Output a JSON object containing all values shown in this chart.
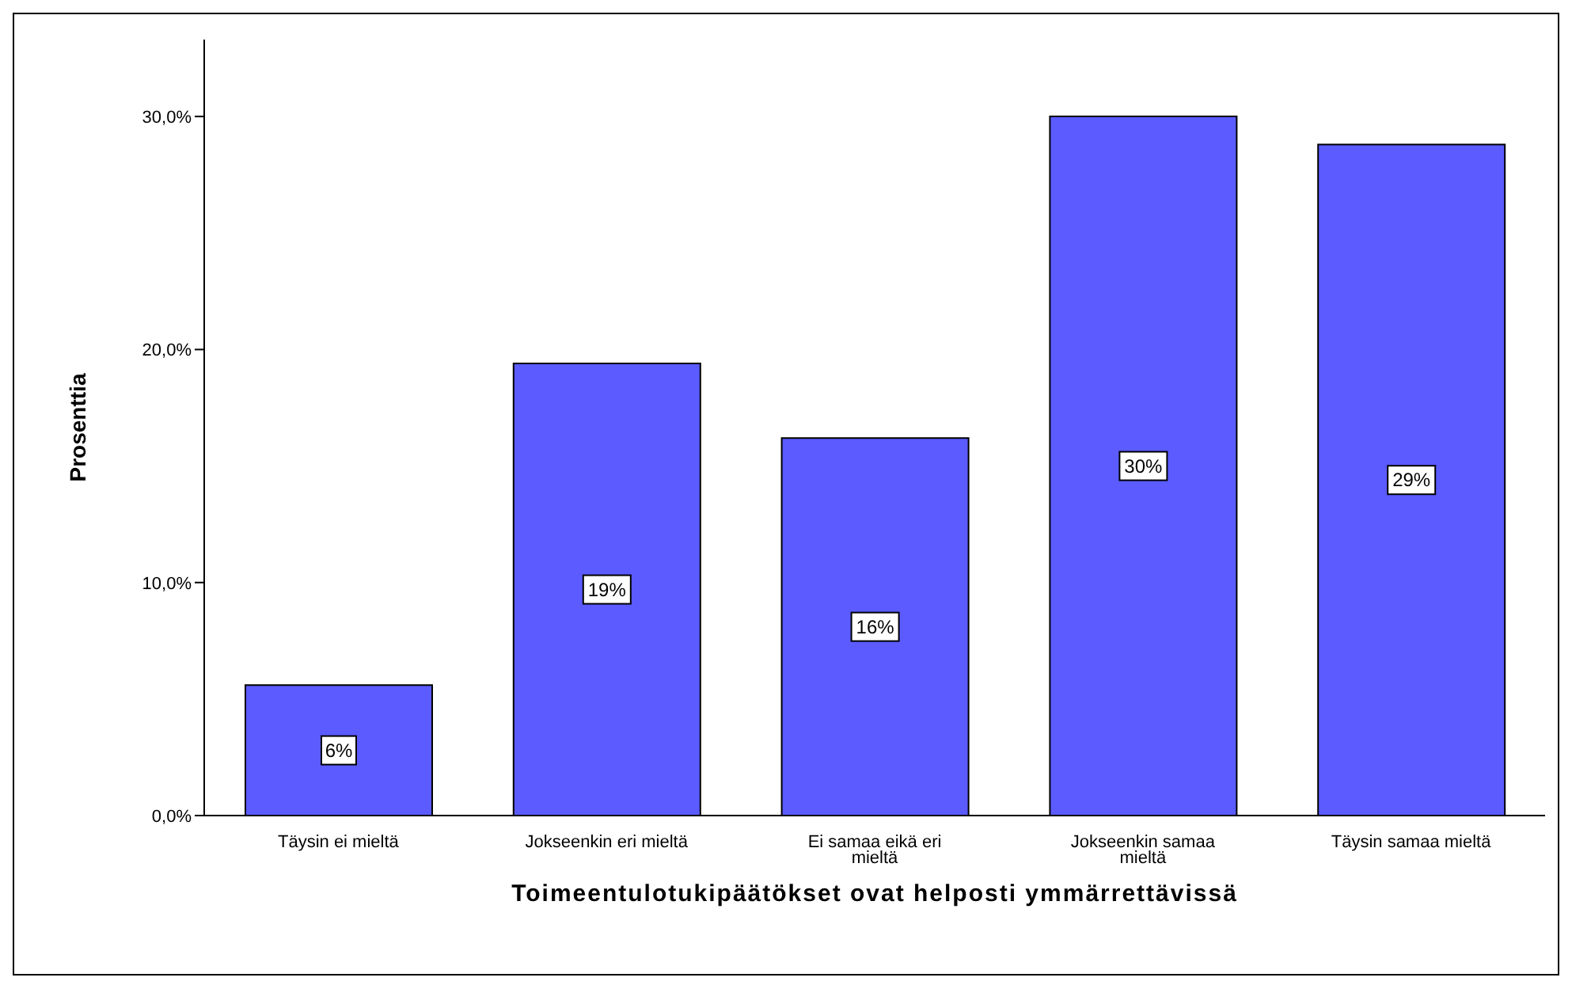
{
  "chart_data": {
    "type": "bar",
    "xlabel": "Toimeentulotukipäätökset ovat helposti ymmärrettävissä",
    "ylabel": "Prosenttia",
    "categories": [
      "Täysin ei mieltä",
      "Jokseenkin eri mieltä",
      "Ei samaa eikä eri mieltä",
      "Jokseenkin samaa mieltä",
      "Täysin samaa mieltä"
    ],
    "values": [
      5.6,
      19.4,
      16.2,
      30.0,
      28.8
    ],
    "value_labels": [
      "6%",
      "19%",
      "16%",
      "30%",
      "29%"
    ],
    "color": "#5b5bff",
    "ylim": [
      0,
      33.3
    ],
    "yticks": [
      {
        "value": 0,
        "label": "0,0%"
      },
      {
        "value": 10,
        "label": "10,0%"
      },
      {
        "value": 20,
        "label": "20,0%"
      },
      {
        "value": 30,
        "label": "30,0%"
      }
    ],
    "grid": false
  }
}
